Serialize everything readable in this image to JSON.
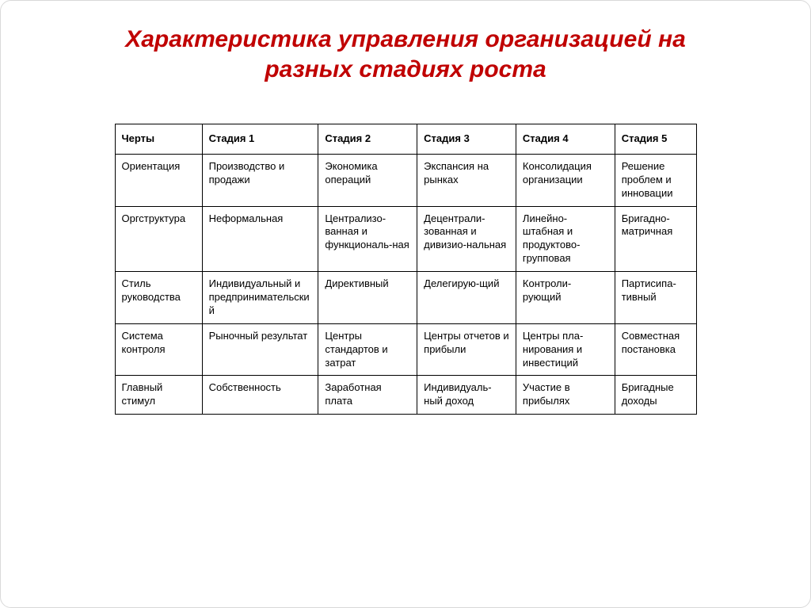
{
  "title": "Характеристика управления организацией на разных стадиях роста",
  "title_color": "#c00000",
  "title_fontsize": 30,
  "background_color": "#ffffff",
  "border_color": "#d9d9d9",
  "table": {
    "type": "table",
    "border_color": "#000000",
    "cell_fontsize": 13,
    "header_fontweight": "bold",
    "column_widths_pct": [
      15,
      20,
      17,
      17,
      17,
      14
    ],
    "columns": [
      "Черты",
      "Стадия 1",
      "Стадия 2",
      "Стадия 3",
      "Стадия 4",
      "Стадия 5"
    ],
    "rows": [
      [
        "Ориентация",
        "Производство и продажи",
        "Экономика операций",
        "Экспансия на рынках",
        "Консолидация организации",
        "Решение проблем и инновации"
      ],
      [
        "Оргструктура",
        "Неформальная",
        "Централизо-ванная и функциональ-ная",
        "Децентрали-зованная и дивизио-нальная",
        "Линейно-штабная и продуктово-групповая",
        "Бригадно-матричная"
      ],
      [
        "Стиль руководства",
        "Индивидуальный и предпринимательский",
        "Директивный",
        "Делегирую-щий",
        "Контроли-рующий",
        "Партисипа-тивный"
      ],
      [
        "Система контроля",
        "Рыночный результат",
        "Центры стандартов и затрат",
        "Центры отчетов и прибыли",
        "Центры пла-нирования и инвестиций",
        "Совместная постановка"
      ],
      [
        "Главный стимул",
        "Собственность",
        "Заработная плата",
        "Индивидуаль-ный доход",
        "Участие в прибылях",
        "Бригадные доходы"
      ]
    ]
  }
}
